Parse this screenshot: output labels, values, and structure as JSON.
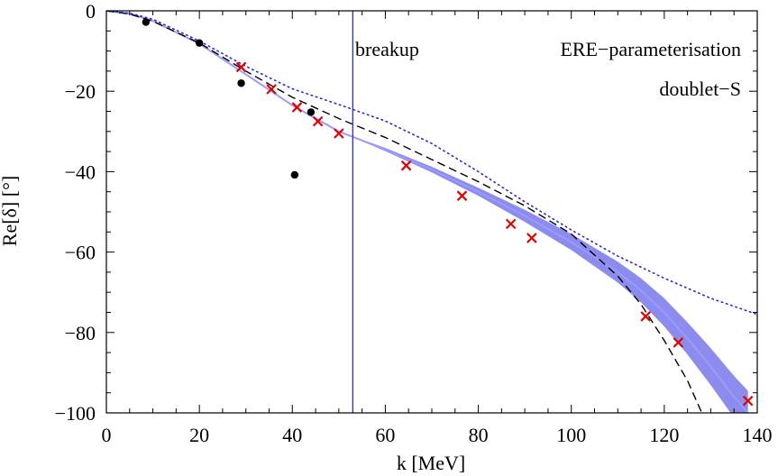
{
  "chart_data": {
    "type": "line",
    "title": "",
    "xlabel": "k [MeV]",
    "ylabel": "Re[δ] [°]",
    "xlim": [
      0,
      140
    ],
    "ylim": [
      -100,
      0
    ],
    "x_ticks": [
      0,
      20,
      40,
      60,
      80,
      100,
      120,
      140
    ],
    "y_ticks": [
      0,
      -20,
      -40,
      -60,
      -80,
      -100
    ],
    "x_tick_labels": [
      "0",
      "20",
      "40",
      "60",
      "80",
      "100",
      "120",
      "140"
    ],
    "y_tick_labels": [
      "0",
      "−20",
      "−40",
      "−60",
      "−80",
      "−100"
    ],
    "grid": false,
    "annotations": {
      "breakup_label": "breakup",
      "breakup_k": 53,
      "param_label": "ERE−parameterisation",
      "channel_label": "doublet−S"
    },
    "colors": {
      "band": "#8c8cee",
      "band_line": "#9a9aff",
      "dotted": "#2a2ad0",
      "dashed": "#000000",
      "cross": "#e00000",
      "dots": "#000000",
      "breakup_line": "#3030a0"
    },
    "series": [
      {
        "name": "band-center",
        "style": "solid",
        "x": [
          0,
          5,
          10,
          20,
          30,
          40,
          50,
          60,
          70,
          80,
          90,
          100,
          110,
          115,
          120,
          125,
          130,
          135,
          138
        ],
        "y": [
          0,
          -0.7,
          -2.5,
          -8.2,
          -15.8,
          -23.5,
          -30.0,
          -34.5,
          -39.5,
          -45.0,
          -51.0,
          -57.5,
          -65.0,
          -69.5,
          -75.0,
          -81.5,
          -88.5,
          -96.0,
          -100
        ],
        "halfwidth": [
          0,
          0,
          0,
          0,
          0,
          0,
          0,
          0.4,
          0.7,
          1.0,
          1.5,
          2.0,
          2.6,
          3.0,
          3.5,
          4.0,
          4.6,
          5.2,
          5.5
        ]
      },
      {
        "name": "dashed",
        "style": "dashed",
        "x": [
          0,
          5,
          10,
          20,
          30,
          40,
          50,
          60,
          70,
          80,
          90,
          100,
          110,
          115,
          120,
          125,
          130
        ],
        "y": [
          0,
          -0.8,
          -2.6,
          -8.0,
          -15.0,
          -21.5,
          -26.8,
          -31.5,
          -37.0,
          -42.5,
          -48.5,
          -55.5,
          -66.0,
          -73.0,
          -82.0,
          -92.0,
          -105.0
        ]
      },
      {
        "name": "dotted",
        "style": "dotted",
        "x": [
          0,
          5,
          10,
          20,
          30,
          40,
          50,
          60,
          70,
          80,
          90,
          100,
          110,
          120,
          130,
          140
        ],
        "y": [
          0,
          -0.6,
          -2.1,
          -7.5,
          -13.8,
          -19.4,
          -23.3,
          -27.4,
          -33.0,
          -40.0,
          -47.5,
          -54.5,
          -61.0,
          -66.5,
          -71.5,
          -75.5
        ]
      },
      {
        "name": "crosses",
        "style": "marker-x",
        "x": [
          29,
          35.5,
          41,
          45.5,
          50,
          64.5,
          76.5,
          87,
          91.5,
          116,
          123,
          138
        ],
        "y": [
          -14.0,
          -19.5,
          -24.0,
          -27.5,
          -30.5,
          -38.5,
          -46.0,
          -53.0,
          -56.5,
          -76.0,
          -82.5,
          -97.0
        ]
      },
      {
        "name": "dots",
        "style": "marker-dot",
        "x": [
          8.5,
          20,
          29,
          44,
          40.5
        ],
        "y": [
          -2.8,
          -8.0,
          -18.0,
          -25.2,
          -40.8
        ]
      }
    ]
  }
}
